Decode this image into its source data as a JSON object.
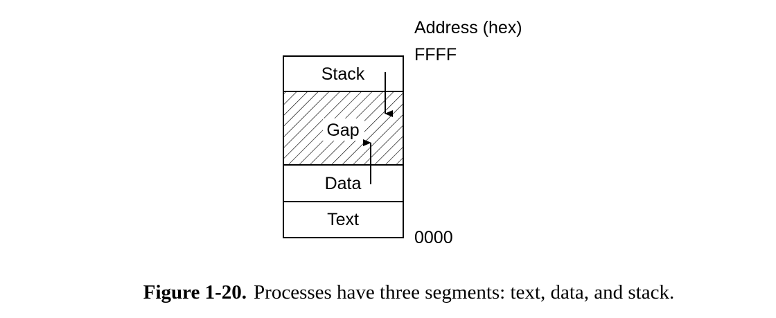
{
  "diagram": {
    "address_header": "Address (hex)",
    "address_top": "FFFF",
    "address_bottom": "0000",
    "segments": {
      "stack": "Stack",
      "gap": "Gap",
      "data": "Data",
      "text": "Text"
    }
  },
  "caption": {
    "number": "Figure 1-20.",
    "text": "Processes have three segments: text, data, and stack."
  }
}
